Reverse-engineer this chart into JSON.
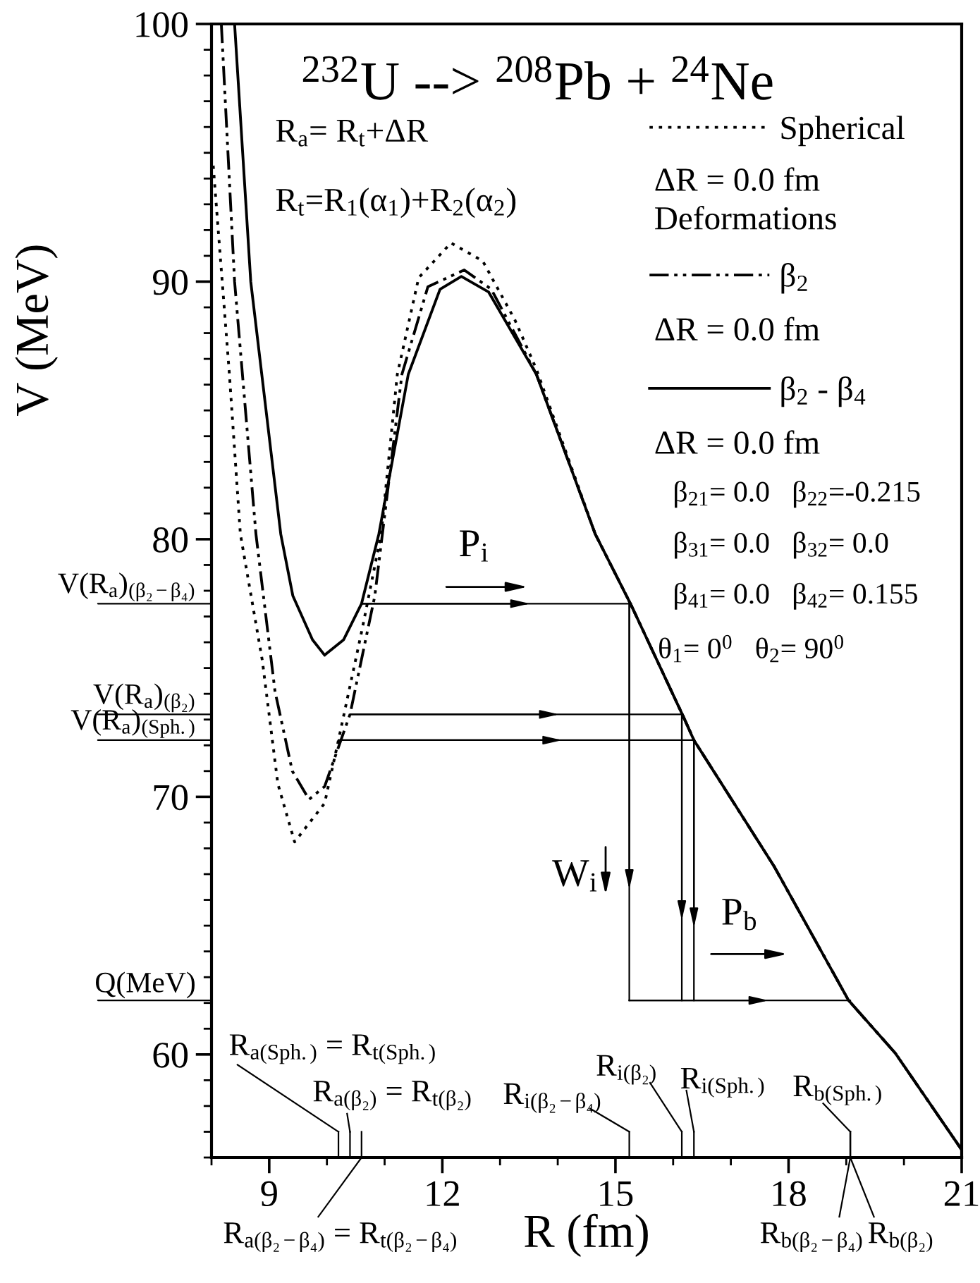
{
  "chart_data": {
    "type": "line",
    "title": "$^{232}$U --> $^{208}$Pb + $^{24}$Ne",
    "xlabel": "R (fm)",
    "ylabel": "V (MeV)",
    "xlim": [
      8,
      21
    ],
    "ylim": [
      56,
      100
    ],
    "xticks": [
      9,
      12,
      15,
      18,
      21
    ],
    "yticks": [
      60,
      70,
      80,
      90,
      100
    ],
    "grid": false,
    "legend": "top right",
    "marker": "none",
    "series": [
      {
        "name": "Spherical",
        "color": "#000000",
        "line_style": "dotted",
        "x": [
          8.03,
          8.31,
          8.5,
          8.88,
          9.15,
          9.44,
          9.96,
          10.2,
          10.61,
          10.94,
          11.22,
          11.59,
          12.15,
          12.7,
          13.26,
          13.63,
          14.65,
          15.26,
          16.18,
          16.36,
          17.75,
          19.04,
          19.85,
          21.0
        ],
        "values": [
          94.5,
          86.4,
          80.2,
          75.3,
          70.5,
          68.25,
          69.75,
          72.2,
          76.5,
          80.2,
          86.4,
          90.15,
          91.5,
          90.8,
          88.5,
          86.6,
          80.2,
          77.5,
          73.1,
          72.2,
          67.3,
          62.1,
          60.05,
          56.3
        ]
      },
      {
        "name": "β$_{2}$",
        "color": "#000000",
        "line_style": "dashdot",
        "x": [
          8.17,
          8.4,
          8.77,
          9.1,
          9.4,
          9.69,
          9.96,
          10.4,
          10.83,
          11.3,
          11.75,
          12.38,
          12.85,
          13.63,
          14.65,
          15.26,
          16.18,
          16.36,
          17.75,
          19.04,
          19.85,
          21.0
        ],
        "values": [
          100,
          90,
          80.2,
          74.1,
          71.0,
          69.9,
          70.4,
          73.2,
          77.8,
          86.4,
          89.8,
          90.45,
          89.7,
          86.4,
          80.2,
          77.5,
          73.1,
          72.2,
          67.3,
          62.1,
          60.05,
          56.3
        ]
      },
      {
        "name": "β$_{2}$ - β$_{4}$",
        "color": "#000000",
        "line_style": "solid",
        "x": [
          8.4,
          8.68,
          9.2,
          9.41,
          9.75,
          9.96,
          10.29,
          10.6,
          10.9,
          11.41,
          11.96,
          12.33,
          12.8,
          13.63,
          14.65,
          15.26,
          16.18,
          16.36,
          17.75,
          19.04,
          19.85,
          21.0
        ],
        "values": [
          100,
          90,
          80.2,
          77.8,
          76.1,
          75.5,
          76.1,
          77.5,
          80.2,
          86.4,
          89.7,
          90.2,
          89.6,
          86.4,
          80.2,
          77.5,
          73.1,
          72.2,
          67.3,
          62.1,
          60.05,
          56.3
        ]
      },
      {
        "color": "#000000",
        "line_style": "solid",
        "x": [
          10.6,
          15.24,
          15.24
        ],
        "values": [
          77.5,
          77.5,
          62.1
        ]
      },
      {
        "color": "#000000",
        "line_style": "solid",
        "x": [
          10.4,
          16.15,
          16.15
        ],
        "values": [
          73.2,
          73.2,
          62.1
        ]
      },
      {
        "color": "#000000",
        "line_style": "solid",
        "x": [
          10.2,
          16.36,
          16.36
        ],
        "values": [
          72.2,
          72.2,
          62.1
        ]
      },
      {
        "color": "#000000",
        "line_style": "solid",
        "x": [
          15.24,
          19.07
        ],
        "values": [
          62.1,
          62.1
        ]
      }
    ],
    "annotations": [
      "R$_{a}$= R$_{t}$+ΔR",
      "R$_{t}$=R$_{1}$(α$_{1}$)+R$_{2}$(α$_{2}$)",
      "ΔR = 0.0 fm",
      "Deformations",
      "ΔR = 0.0 fm",
      "ΔR = 0.0 fm",
      "β$_{21}$= 0.0   β$_{22}$=-0.215",
      "β$_{31}$= 0.0   β$_{32}$= 0.0",
      "β$_{41}$= 0.0   β$_{42}$= 0.155",
      "θ$_{1}$= 0$^{0}$   θ$_{2}$= 90$^{0}$",
      "P$_{i}$",
      "W$_{i}$",
      "P$_{b}$",
      "V(R$_{a}$)$_{(β₂−β₄)}$",
      "V(R$_{a}$)$_{(β₂)}$",
      "V(R$_{a}$)$_{(Sph.)}$",
      "Q(MeV)",
      "R$_{a(Sph.)}$ = R$_{t(Sph.)}$",
      "R$_{a(β₂)}$ = R$_{t(β₂)}$",
      "R$_{a(β₂−β₄)}$ = R$_{t(β₂−β₄)}$",
      "R$_{i(β₂−β₄)}$",
      "R$_{i(β₂)}$",
      "R$_{i(Sph.)}$",
      "R$_{b(Sph.)}$",
      "R$_{b(β₂−β₄)}$",
      "R$_{b(β₂)}$"
    ]
  }
}
